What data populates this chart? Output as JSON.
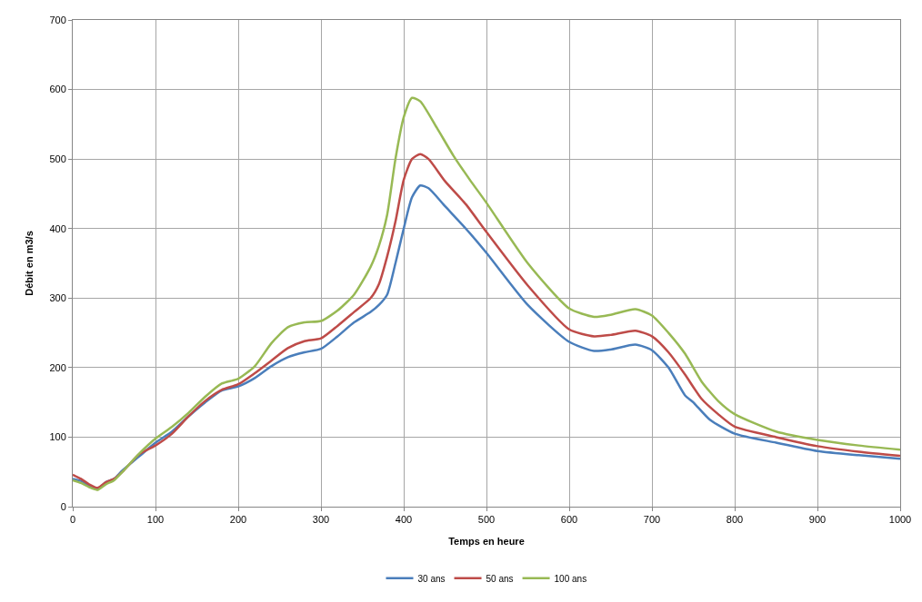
{
  "chart_data": {
    "type": "line",
    "xlabel": "Temps en heure",
    "ylabel": "Débit en m3/s",
    "xlim": [
      0,
      1000
    ],
    "ylim": [
      0,
      700
    ],
    "xticks": [
      0,
      100,
      200,
      300,
      400,
      500,
      600,
      700,
      800,
      900,
      1000
    ],
    "yticks": [
      0,
      100,
      200,
      300,
      400,
      500,
      600,
      700
    ],
    "grid": true,
    "legend": "bottom",
    "marker": "none",
    "line_style": "solid",
    "series": [
      {
        "name": "30 ans",
        "color": "#4a7ebb",
        "x": [
          0,
          10,
          20,
          30,
          40,
          50,
          60,
          80,
          100,
          120,
          140,
          160,
          180,
          200,
          220,
          240,
          260,
          280,
          300,
          320,
          340,
          360,
          370,
          380,
          390,
          400,
          410,
          420,
          430,
          450,
          475,
          500,
          550,
          600,
          630,
          650,
          680,
          700,
          720,
          740,
          750,
          770,
          800,
          850,
          900,
          950,
          1000
        ],
        "values": [
          40,
          37,
          30,
          26,
          35,
          40,
          52,
          72,
          92,
          108,
          130,
          150,
          167,
          173,
          185,
          202,
          215,
          222,
          227,
          245,
          265,
          280,
          290,
          305,
          350,
          400,
          445,
          462,
          458,
          432,
          400,
          365,
          290,
          237,
          224,
          226,
          233,
          225,
          200,
          160,
          150,
          125,
          105,
          92,
          80,
          74,
          69
        ]
      },
      {
        "name": "50 ans",
        "color": "#be4b48",
        "x": [
          0,
          10,
          20,
          30,
          40,
          50,
          60,
          80,
          100,
          120,
          140,
          160,
          180,
          200,
          220,
          240,
          260,
          280,
          300,
          320,
          340,
          360,
          370,
          380,
          390,
          400,
          410,
          420,
          430,
          450,
          475,
          500,
          550,
          600,
          630,
          650,
          680,
          700,
          720,
          740,
          760,
          780,
          800,
          850,
          900,
          950,
          1000
        ],
        "values": [
          46,
          40,
          32,
          27,
          35,
          40,
          50,
          75,
          88,
          105,
          130,
          152,
          168,
          176,
          192,
          210,
          228,
          238,
          242,
          260,
          280,
          300,
          320,
          360,
          410,
          470,
          500,
          507,
          500,
          468,
          435,
          395,
          318,
          255,
          245,
          247,
          253,
          245,
          222,
          190,
          155,
          133,
          115,
          100,
          87,
          79,
          73
        ]
      },
      {
        "name": "100 ans",
        "color": "#98b954",
        "x": [
          0,
          10,
          20,
          30,
          40,
          50,
          60,
          80,
          100,
          120,
          140,
          160,
          180,
          200,
          220,
          240,
          260,
          280,
          300,
          320,
          340,
          360,
          370,
          380,
          390,
          400,
          410,
          420,
          440,
          460,
          480,
          500,
          550,
          600,
          630,
          650,
          680,
          700,
          720,
          740,
          760,
          780,
          800,
          850,
          900,
          950,
          1000
        ],
        "values": [
          38,
          34,
          28,
          24,
          32,
          38,
          50,
          76,
          98,
          115,
          135,
          158,
          177,
          184,
          202,
          235,
          258,
          265,
          267,
          282,
          305,
          345,
          375,
          420,
          500,
          560,
          588,
          583,
          545,
          505,
          470,
          437,
          350,
          285,
          273,
          276,
          284,
          275,
          250,
          220,
          180,
          152,
          133,
          108,
          96,
          88,
          82
        ]
      }
    ]
  }
}
